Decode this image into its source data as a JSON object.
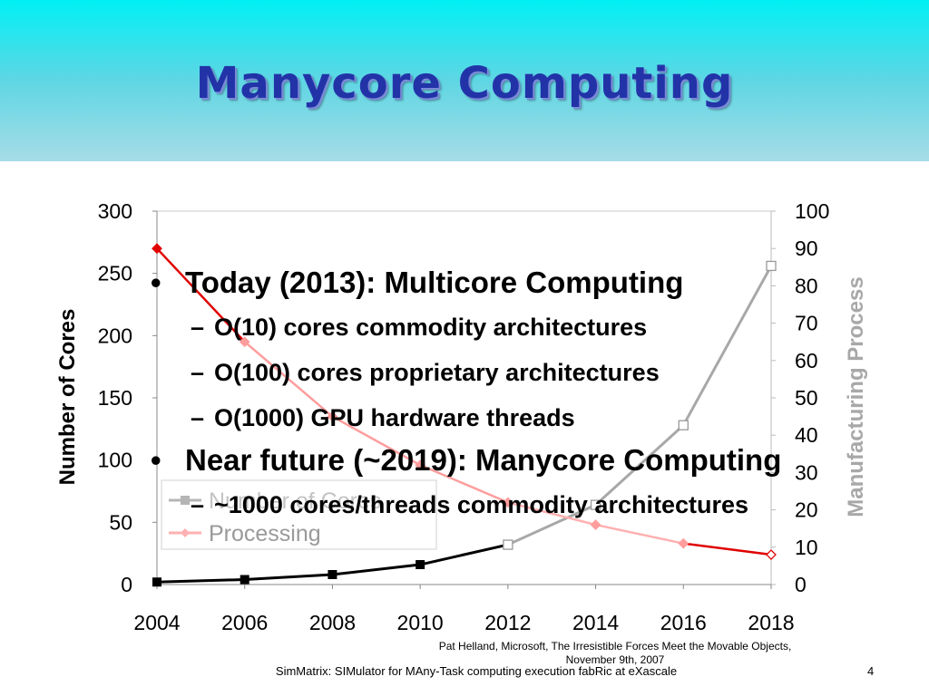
{
  "slide": {
    "title": "Manycore Computing",
    "bullets": [
      {
        "text": "Today (2013): Multicore Computing",
        "sub": [
          "O(10) cores commodity architectures",
          "O(100) cores proprietary architectures",
          "O(1000) GPU hardware threads"
        ]
      },
      {
        "text": "Near future (~2019): Manycore Computing",
        "sub": [
          "~1000 cores/threads commodity architectures"
        ]
      }
    ],
    "bullet_glyph": "•",
    "dash_glyph": "–",
    "citation": "Pat Helland, Microsoft, The Irresistible Forces Meet the Movable Objects, November 9th, 2007",
    "footer": "SimMatrix: SIMulator for MAny-Task computing execution fabRic at eXascale",
    "page_number": "4"
  },
  "chart_data": {
    "type": "line",
    "x": [
      2004,
      2006,
      2008,
      2010,
      2012,
      2014,
      2016,
      2018
    ],
    "x_ticks": [
      "2004",
      "2006",
      "2008",
      "2010",
      "2012",
      "2014",
      "2016",
      "2018"
    ],
    "xlim": [
      2004,
      2018
    ],
    "ylabel": "Number of Cores",
    "y2label": "Manufacturing Process",
    "ylim": [
      0,
      300
    ],
    "y_ticks": [
      0,
      50,
      100,
      150,
      200,
      250,
      300
    ],
    "y2lim": [
      0,
      100
    ],
    "y2_ticks": [
      0,
      10,
      20,
      30,
      40,
      50,
      60,
      70,
      80,
      90,
      100
    ],
    "legend_position": "left",
    "grid": false,
    "series": [
      {
        "name": "Number of Cores",
        "axis": "left",
        "values": [
          2,
          4,
          8,
          16,
          32,
          64,
          128,
          256
        ],
        "highlight_until": 2012,
        "color_past": "#000000",
        "color_future": "#a8a8a8",
        "marker": "square"
      },
      {
        "name": "Processing",
        "axis": "right",
        "values": [
          90,
          65,
          45,
          32,
          22,
          16,
          11,
          8
        ],
        "highlight_until": 2012,
        "color_past": "#ff9d9d",
        "color_future": "#ffb0b0",
        "accent": "#e00000",
        "marker": "diamond"
      }
    ]
  }
}
